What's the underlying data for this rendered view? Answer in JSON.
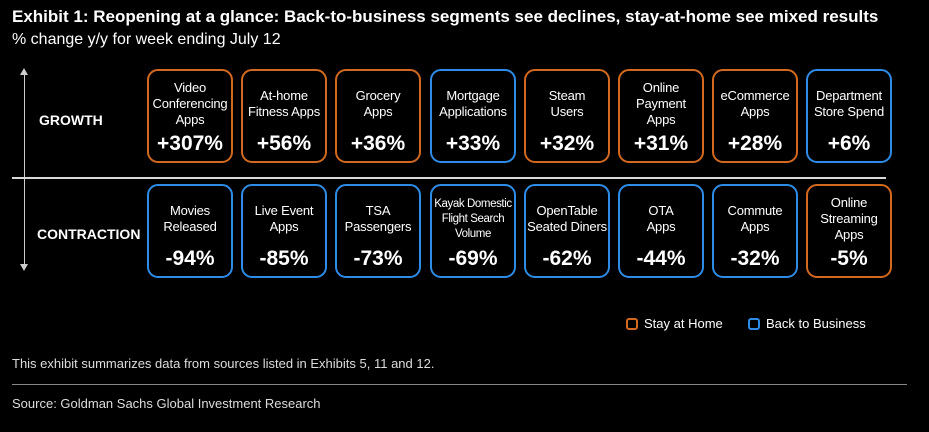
{
  "title": "Exhibit 1: Reopening at a glance: Back-to-business segments see declines, stay-at-home see mixed results",
  "subtitle": "% change y/y for week ending July 12",
  "colors": {
    "stay_at_home": "#d2691e",
    "back_to_business": "#2e8ce6"
  },
  "legend": {
    "stay": "Stay at Home",
    "back": "Back to Business"
  },
  "footnote": "This exhibit summarizes data from sources listed in Exhibits 5, 11 and 12.",
  "source": "Source: Goldman Sachs Global Investment Research",
  "chart_data": {
    "type": "table",
    "title": "Reopening at a glance",
    "unit": "% change y/y",
    "rows": [
      {
        "label": "GROWTH",
        "items": [
          {
            "name": "Video\nConferencing\nApps",
            "value": 307,
            "display": "+307%",
            "group": "stay"
          },
          {
            "name": "At-home\nFitness Apps",
            "value": 56,
            "display": "+56%",
            "group": "stay"
          },
          {
            "name": "Grocery\nApps",
            "value": 36,
            "display": "+36%",
            "group": "stay"
          },
          {
            "name": "Mortgage\nApplications",
            "value": 33,
            "display": "+33%",
            "group": "back"
          },
          {
            "name": "Steam\nUsers",
            "value": 32,
            "display": "+32%",
            "group": "stay"
          },
          {
            "name": "Online\nPayment\nApps",
            "value": 31,
            "display": "+31%",
            "group": "stay"
          },
          {
            "name": "eCommerce\nApps",
            "value": 28,
            "display": "+28%",
            "group": "stay"
          },
          {
            "name": "Department\nStore Spend",
            "value": 6,
            "display": "+6%",
            "group": "back"
          }
        ]
      },
      {
        "label": "CONTRACTION",
        "items": [
          {
            "name": "Movies\nReleased",
            "value": -94,
            "display": "-94%",
            "group": "back"
          },
          {
            "name": "Live Event\nApps",
            "value": -85,
            "display": "-85%",
            "group": "back"
          },
          {
            "name": "TSA\nPassengers",
            "value": -73,
            "display": "-73%",
            "group": "back"
          },
          {
            "name": "Kayak Domestic\nFlight Search\nVolume",
            "value": -69,
            "display": "-69%",
            "group": "back"
          },
          {
            "name": "OpenTable\nSeated Diners",
            "value": -62,
            "display": "-62%",
            "group": "back"
          },
          {
            "name": "OTA\nApps",
            "value": -44,
            "display": "-44%",
            "group": "back"
          },
          {
            "name": "Commute\nApps",
            "value": -32,
            "display": "-32%",
            "group": "back"
          },
          {
            "name": "Online\nStreaming\nApps",
            "value": -5,
            "display": "-5%",
            "group": "stay"
          }
        ]
      }
    ]
  }
}
